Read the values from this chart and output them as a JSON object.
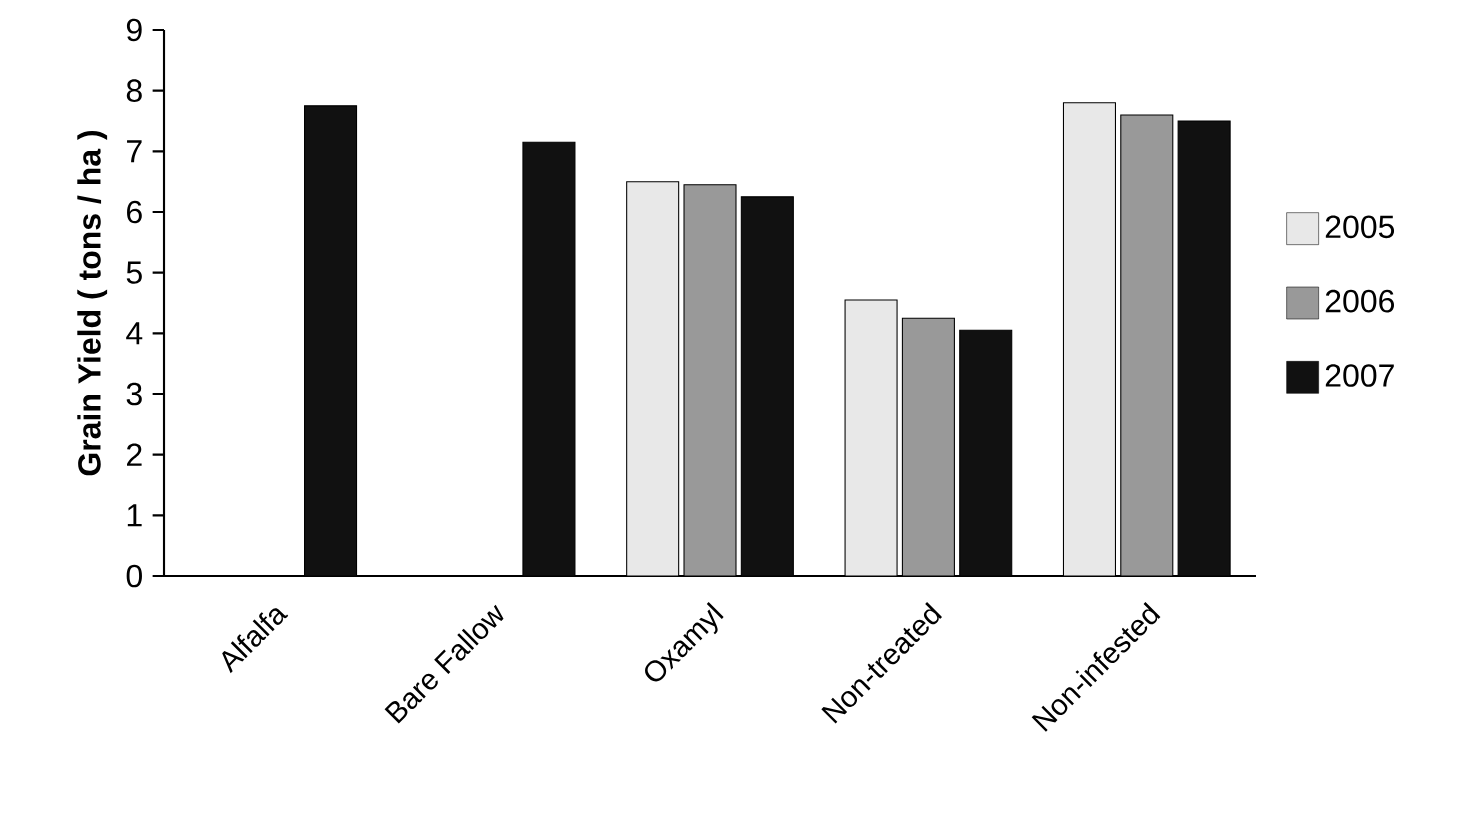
{
  "chart_data": {
    "type": "bar",
    "ylabel": "Grain Yield ( tons / ha )",
    "categories": [
      "Alfalfa",
      "Bare Fallow",
      "Oxamyl",
      "Non-treated",
      "Non-infested"
    ],
    "series": [
      {
        "name": "2005",
        "color": "#e8e8e8",
        "values": [
          null,
          null,
          6.5,
          4.55,
          7.8
        ]
      },
      {
        "name": "2006",
        "color": "#999999",
        "values": [
          null,
          null,
          6.45,
          4.25,
          7.6
        ]
      },
      {
        "name": "2007",
        "color": "#111111",
        "values": [
          7.75,
          7.15,
          6.25,
          4.05,
          7.5
        ]
      }
    ],
    "ylim": [
      0,
      9
    ],
    "yticks": [
      0,
      1,
      2,
      3,
      4,
      5,
      6,
      7,
      8,
      9
    ],
    "grid": false,
    "legend": "right"
  }
}
